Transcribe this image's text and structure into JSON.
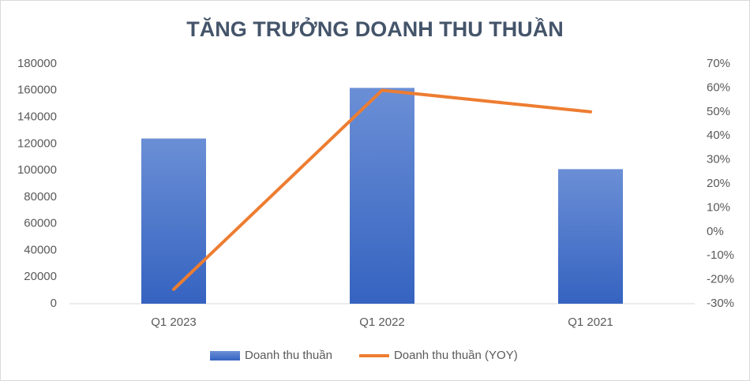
{
  "chart_data": {
    "type": "bar_line",
    "title": "TĂNG TRƯỞNG DOANH THU THUẦN",
    "categories": [
      "Q1 2023",
      "Q1 2022",
      "Q1 2021"
    ],
    "series": [
      {
        "name": "Doanh thu thuần",
        "type": "bar",
        "color": "#4472c4",
        "values": [
          124000,
          162000,
          101000
        ]
      },
      {
        "name": "Doanh thu thuần (YOY)",
        "type": "line",
        "color": "#ed7d31",
        "axis": "y2",
        "values": [
          -24,
          59,
          50
        ]
      }
    ],
    "ylim": [
      0,
      180000
    ],
    "yticks": [
      0,
      20000,
      40000,
      60000,
      80000,
      100000,
      120000,
      140000,
      160000,
      180000
    ],
    "y2lim": [
      -30,
      70
    ],
    "y2ticks": [
      {
        "value": -30,
        "label": "-30%"
      },
      {
        "value": -20,
        "label": "-20%"
      },
      {
        "value": -10,
        "label": "-10%"
      },
      {
        "value": 0,
        "label": "0%"
      },
      {
        "value": 10,
        "label": "10%"
      },
      {
        "value": 20,
        "label": "20%"
      },
      {
        "value": 30,
        "label": "30%"
      },
      {
        "value": 40,
        "label": "40%"
      },
      {
        "value": 50,
        "label": "50%"
      },
      {
        "value": 60,
        "label": "60%"
      },
      {
        "value": 70,
        "label": "70%"
      }
    ],
    "grid": false,
    "legend": "bottom"
  }
}
